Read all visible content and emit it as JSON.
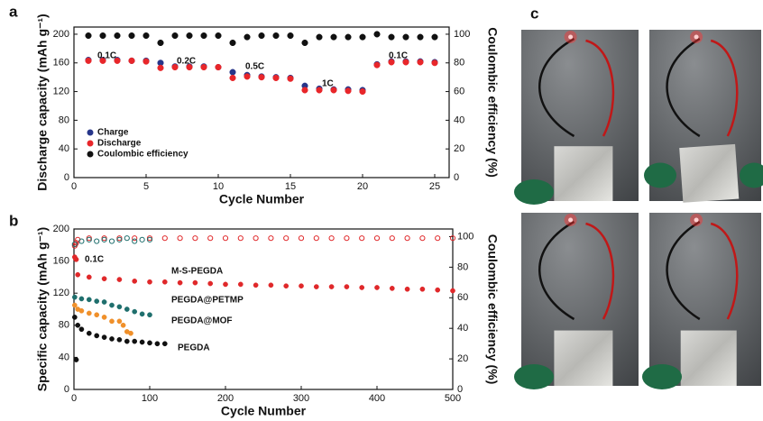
{
  "chart_data": [
    {
      "type": "scatter",
      "panel_label": "a",
      "xlabel": "Cycle Number",
      "ylabel": "Discharge capacity (mAh g⁻¹)",
      "y2label": "Coulombic efficiency (%)",
      "x": [
        1,
        2,
        3,
        4,
        5,
        6,
        7,
        8,
        9,
        10,
        11,
        12,
        13,
        14,
        15,
        16,
        17,
        18,
        19,
        20,
        21,
        22,
        23,
        24,
        25
      ],
      "series": [
        {
          "name": "Charge",
          "color": "#27368a",
          "values": [
            164,
            164,
            164,
            163,
            163,
            160,
            155,
            155,
            155,
            154,
            147,
            143,
            141,
            140,
            139,
            128,
            124,
            123,
            123,
            122,
            158,
            162,
            162,
            162,
            161
          ]
        },
        {
          "name": "Discharge",
          "color": "#e8262a",
          "values": [
            163,
            163,
            163,
            163,
            162,
            153,
            154,
            154,
            154,
            154,
            139,
            141,
            140,
            139,
            138,
            122,
            122,
            122,
            121,
            120,
            157,
            161,
            161,
            161,
            160
          ]
        },
        {
          "name": "Coulombic efficiency",
          "color": "#111111",
          "axis": "y2",
          "values": [
            99,
            99,
            99,
            99,
            99,
            94,
            99,
            99,
            99,
            99,
            94,
            98,
            99,
            99,
            99,
            94,
            98,
            98,
            98,
            98,
            100,
            98,
            98,
            98,
            98
          ]
        }
      ],
      "annotations": [
        "0.1C",
        "0.2C",
        "0.5C",
        "1C",
        "0.1C"
      ],
      "xlim": [
        0,
        26
      ],
      "xticks": [
        0,
        5,
        10,
        15,
        20,
        25
      ],
      "ylim": [
        0,
        210
      ],
      "yticks": [
        0,
        40,
        80,
        120,
        160,
        200
      ],
      "y2lim": [
        0,
        105
      ],
      "y2ticks": [
        0,
        20,
        40,
        60,
        80,
        100
      ],
      "legend": "lower left"
    },
    {
      "type": "scatter",
      "panel_label": "b",
      "xlabel": "Cycle Number",
      "ylabel": "Specific capacity (mAh g⁻¹)",
      "y2label": "Coulombic efficiency (%)",
      "series": [
        {
          "name": "M-S-PEGDA",
          "color": "#e0282a",
          "marker": "filled",
          "x": [
            1,
            2,
            3,
            5,
            20,
            40,
            60,
            80,
            100,
            120,
            140,
            160,
            180,
            200,
            220,
            240,
            260,
            280,
            300,
            320,
            340,
            360,
            380,
            400,
            420,
            440,
            460,
            480,
            500
          ],
          "values": [
            165,
            163,
            162,
            143,
            140,
            138,
            137,
            135,
            134,
            134,
            133,
            133,
            132,
            131,
            131,
            130,
            130,
            129,
            129,
            128,
            128,
            128,
            127,
            127,
            126,
            125,
            125,
            124,
            123
          ]
        },
        {
          "name": "PEGDA@PETMP",
          "color": "#1f6f6d",
          "marker": "filled",
          "x": [
            1,
            10,
            20,
            30,
            40,
            50,
            60,
            70,
            80,
            90,
            100
          ],
          "values": [
            115,
            113,
            112,
            110,
            109,
            105,
            103,
            100,
            97,
            94,
            93
          ]
        },
        {
          "name": "PEGDA@MOF",
          "color": "#f0902a",
          "marker": "filled",
          "x": [
            1,
            5,
            10,
            20,
            30,
            40,
            50,
            60,
            65,
            70,
            75
          ],
          "values": [
            105,
            100,
            98,
            95,
            93,
            90,
            85,
            85,
            80,
            72,
            70
          ]
        },
        {
          "name": "PEGDA",
          "color": "#111111",
          "marker": "filled",
          "x": [
            1,
            3,
            5,
            10,
            20,
            30,
            40,
            50,
            60,
            70,
            80,
            90,
            100,
            110,
            120
          ],
          "values": [
            90,
            37,
            80,
            75,
            70,
            67,
            65,
            63,
            62,
            60,
            60,
            59,
            58,
            57,
            57
          ]
        },
        {
          "color": "#e0282a",
          "marker": "open",
          "axis": "y2",
          "x": [
            1,
            2,
            3,
            5,
            20,
            40,
            60,
            80,
            100,
            120,
            140,
            160,
            180,
            200,
            220,
            240,
            260,
            280,
            300,
            320,
            340,
            360,
            380,
            400,
            420,
            440,
            460,
            480,
            500
          ],
          "values": [
            94,
            95,
            96,
            98,
            99,
            99,
            99,
            99,
            99,
            99,
            99,
            99,
            99,
            99,
            99,
            99,
            99,
            99,
            99,
            99,
            99,
            99,
            99,
            99,
            99,
            99,
            99,
            99,
            99
          ]
        },
        {
          "color": "#1f6f6d",
          "marker": "open",
          "axis": "y2",
          "x": [
            1,
            10,
            20,
            30,
            40,
            50,
            60,
            70,
            80,
            90,
            100
          ],
          "values": [
            95,
            97,
            98,
            97,
            98,
            97,
            98,
            99,
            97,
            98,
            98
          ]
        }
      ],
      "annotations": [
        "0.1C"
      ],
      "xlim": [
        0,
        500
      ],
      "xticks": [
        0,
        100,
        200,
        300,
        400,
        500
      ],
      "ylim": [
        0,
        200
      ],
      "yticks": [
        0,
        40,
        80,
        120,
        160,
        200
      ],
      "y2lim": [
        0,
        105
      ],
      "y2ticks": [
        0,
        20,
        40,
        60,
        80,
        100
      ],
      "direct_labels": true
    }
  ],
  "photo_panel": {
    "panel_label": "c"
  }
}
